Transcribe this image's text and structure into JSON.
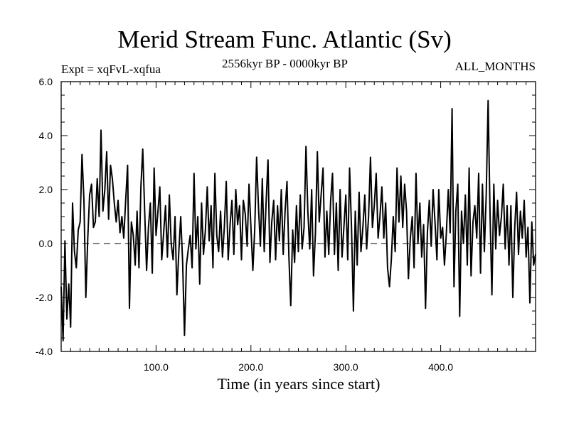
{
  "chart_data": {
    "type": "line",
    "title": "Merid Stream Func. Atlantic (Sv)",
    "subtitle_left": "Expt = xqFvL-xqfua",
    "subtitle_center": "2556kyr BP - 0000kyr BP",
    "subtitle_right": "ALL_MONTHS",
    "xlabel": "Time (in years since start)",
    "ylabel": "",
    "xlim": [
      0,
      500
    ],
    "ylim": [
      -4.0,
      6.0
    ],
    "x_ticks": [
      100,
      200,
      300,
      400
    ],
    "x_tick_labels": [
      "100.0",
      "200.0",
      "300.0",
      "400.0"
    ],
    "y_ticks": [
      -4,
      -2,
      0,
      2,
      4,
      6
    ],
    "y_tick_labels": [
      "-4.0",
      "-2.0",
      "0.0",
      "2.0",
      "4.0",
      "6.0"
    ],
    "reference_line": 0.0,
    "series": [
      {
        "name": "Merid Stream Func. Atlantic",
        "points": [
          [
            0,
            -1.6
          ],
          [
            2,
            -3.6
          ],
          [
            4,
            0.1
          ],
          [
            6,
            -2.8
          ],
          [
            8,
            -1.5
          ],
          [
            10,
            -3.1
          ],
          [
            12,
            1.5
          ],
          [
            14,
            -0.3
          ],
          [
            16,
            -0.9
          ],
          [
            18,
            0.5
          ],
          [
            20,
            0.8
          ],
          [
            22,
            3.3
          ],
          [
            24,
            1.6
          ],
          [
            26,
            -2.0
          ],
          [
            28,
            0.2
          ],
          [
            30,
            1.8
          ],
          [
            32,
            2.2
          ],
          [
            34,
            0.6
          ],
          [
            36,
            0.8
          ],
          [
            38,
            2.4
          ],
          [
            40,
            1.0
          ],
          [
            42,
            4.2
          ],
          [
            44,
            1.2
          ],
          [
            46,
            2.0
          ],
          [
            48,
            3.4
          ],
          [
            50,
            0.9
          ],
          [
            52,
            2.9
          ],
          [
            54,
            2.4
          ],
          [
            56,
            1.5
          ],
          [
            58,
            0.8
          ],
          [
            60,
            1.6
          ],
          [
            62,
            0.4
          ],
          [
            64,
            1.0
          ],
          [
            66,
            0.2
          ],
          [
            68,
            1.6
          ],
          [
            70,
            2.9
          ],
          [
            72,
            -2.4
          ],
          [
            74,
            0.8
          ],
          [
            76,
            0.3
          ],
          [
            78,
            -0.8
          ],
          [
            80,
            1.2
          ],
          [
            82,
            -0.9
          ],
          [
            84,
            2.1
          ],
          [
            86,
            3.5
          ],
          [
            88,
            1.2
          ],
          [
            90,
            -1.0
          ],
          [
            92,
            0.6
          ],
          [
            94,
            1.5
          ],
          [
            96,
            -1.1
          ],
          [
            98,
            2.8
          ],
          [
            100,
            0.3
          ],
          [
            102,
            1.2
          ],
          [
            104,
            2.1
          ],
          [
            106,
            -0.6
          ],
          [
            108,
            0.4
          ],
          [
            110,
            1.4
          ],
          [
            112,
            -0.5
          ],
          [
            114,
            1.8
          ],
          [
            116,
            0.0
          ],
          [
            118,
            -0.6
          ],
          [
            120,
            1.0
          ],
          [
            122,
            -1.9
          ],
          [
            124,
            -0.3
          ],
          [
            126,
            1.0
          ],
          [
            128,
            -0.7
          ],
          [
            130,
            -3.4
          ],
          [
            132,
            -0.8
          ],
          [
            134,
            -0.2
          ],
          [
            136,
            0.3
          ],
          [
            138,
            -0.9
          ],
          [
            140,
            2.6
          ],
          [
            142,
            -0.2
          ],
          [
            144,
            1.0
          ],
          [
            146,
            -1.5
          ],
          [
            148,
            1.5
          ],
          [
            150,
            -0.4
          ],
          [
            152,
            0.5
          ],
          [
            154,
            2.1
          ],
          [
            156,
            0.1
          ],
          [
            158,
            1.4
          ],
          [
            160,
            -0.9
          ],
          [
            162,
            2.6
          ],
          [
            164,
            0.3
          ],
          [
            166,
            -0.3
          ],
          [
            168,
            1.2
          ],
          [
            170,
            -0.5
          ],
          [
            172,
            0.6
          ],
          [
            174,
            2.3
          ],
          [
            176,
            -0.6
          ],
          [
            178,
            0.7
          ],
          [
            180,
            1.6
          ],
          [
            182,
            -0.4
          ],
          [
            184,
            2.0
          ],
          [
            186,
            0.7
          ],
          [
            188,
            1.4
          ],
          [
            190,
            -0.6
          ],
          [
            192,
            1.6
          ],
          [
            194,
            1.1
          ],
          [
            196,
            -0.1
          ],
          [
            198,
            2.2
          ],
          [
            200,
            0.6
          ],
          [
            202,
            -1.0
          ],
          [
            204,
            0.5
          ],
          [
            206,
            3.2
          ],
          [
            208,
            1.3
          ],
          [
            210,
            -0.1
          ],
          [
            212,
            2.4
          ],
          [
            214,
            -0.3
          ],
          [
            216,
            1.5
          ],
          [
            218,
            3.1
          ],
          [
            220,
            -0.7
          ],
          [
            222,
            0.8
          ],
          [
            224,
            1.6
          ],
          [
            226,
            -0.6
          ],
          [
            228,
            1.4
          ],
          [
            230,
            0.1
          ],
          [
            232,
            2.0
          ],
          [
            234,
            -0.4
          ],
          [
            236,
            1.2
          ],
          [
            238,
            2.3
          ],
          [
            240,
            -0.5
          ],
          [
            242,
            -2.3
          ],
          [
            244,
            0.5
          ],
          [
            246,
            -0.7
          ],
          [
            248,
            1.4
          ],
          [
            250,
            -0.3
          ],
          [
            252,
            1.8
          ],
          [
            254,
            -0.2
          ],
          [
            256,
            0.6
          ],
          [
            258,
            3.6
          ],
          [
            260,
            1.2
          ],
          [
            262,
            -0.2
          ],
          [
            264,
            2.0
          ],
          [
            266,
            -1.2
          ],
          [
            268,
            0.4
          ],
          [
            270,
            3.4
          ],
          [
            272,
            0.8
          ],
          [
            274,
            1.8
          ],
          [
            276,
            2.8
          ],
          [
            278,
            -0.5
          ],
          [
            280,
            1.2
          ],
          [
            282,
            -0.4
          ],
          [
            284,
            1.6
          ],
          [
            286,
            2.6
          ],
          [
            288,
            -0.4
          ],
          [
            290,
            1.5
          ],
          [
            292,
            -1.0
          ],
          [
            294,
            2.0
          ],
          [
            296,
            -0.5
          ],
          [
            298,
            0.6
          ],
          [
            300,
            1.8
          ],
          [
            302,
            -0.6
          ],
          [
            304,
            2.8
          ],
          [
            306,
            0.6
          ],
          [
            308,
            -2.5
          ],
          [
            310,
            1.2
          ],
          [
            312,
            -0.8
          ],
          [
            314,
            1.9
          ],
          [
            316,
            -0.3
          ],
          [
            318,
            0.6
          ],
          [
            320,
            1.8
          ],
          [
            322,
            -0.2
          ],
          [
            324,
            1.0
          ],
          [
            326,
            3.2
          ],
          [
            328,
            0.6
          ],
          [
            330,
            1.4
          ],
          [
            332,
            2.6
          ],
          [
            334,
            0.2
          ],
          [
            336,
            1.0
          ],
          [
            338,
            2.1
          ],
          [
            340,
            0.2
          ],
          [
            342,
            1.5
          ],
          [
            344,
            -0.9
          ],
          [
            346,
            -1.6
          ],
          [
            348,
            -0.6
          ],
          [
            350,
            1.0
          ],
          [
            352,
            -0.3
          ],
          [
            354,
            2.8
          ],
          [
            356,
            0.8
          ],
          [
            358,
            2.5
          ],
          [
            360,
            0.6
          ],
          [
            362,
            2.2
          ],
          [
            364,
            1.2
          ],
          [
            366,
            -1.3
          ],
          [
            368,
            0.2
          ],
          [
            370,
            1.0
          ],
          [
            372,
            -0.9
          ],
          [
            374,
            2.6
          ],
          [
            376,
            0.0
          ],
          [
            378,
            1.5
          ],
          [
            380,
            -0.5
          ],
          [
            382,
            0.7
          ],
          [
            384,
            -2.4
          ],
          [
            386,
            0.4
          ],
          [
            388,
            1.6
          ],
          [
            390,
            -0.1
          ],
          [
            392,
            2.0
          ],
          [
            394,
            0.8
          ],
          [
            396,
            -0.6
          ],
          [
            398,
            2.0
          ],
          [
            400,
            0.2
          ],
          [
            402,
            0.6
          ],
          [
            404,
            -0.8
          ],
          [
            406,
            0.4
          ],
          [
            408,
            2.0
          ],
          [
            410,
            0.4
          ],
          [
            412,
            5.0
          ],
          [
            414,
            -1.6
          ],
          [
            416,
            1.2
          ],
          [
            418,
            2.2
          ],
          [
            420,
            -2.7
          ],
          [
            422,
            1.2
          ],
          [
            424,
            0.0
          ],
          [
            426,
            1.8
          ],
          [
            428,
            -0.8
          ],
          [
            430,
            2.8
          ],
          [
            432,
            -1.2
          ],
          [
            434,
            0.8
          ],
          [
            436,
            1.4
          ],
          [
            438,
            0.2
          ],
          [
            440,
            2.6
          ],
          [
            442,
            -1.1
          ],
          [
            444,
            2.2
          ],
          [
            446,
            -0.3
          ],
          [
            448,
            1.8
          ],
          [
            450,
            5.3
          ],
          [
            452,
            1.1
          ],
          [
            454,
            -1.9
          ],
          [
            456,
            2.2
          ],
          [
            458,
            -0.2
          ],
          [
            460,
            1.6
          ],
          [
            462,
            0.3
          ],
          [
            464,
            1.0
          ],
          [
            466,
            2.2
          ],
          [
            468,
            -0.2
          ],
          [
            470,
            1.4
          ],
          [
            472,
            -0.8
          ],
          [
            474,
            1.4
          ],
          [
            476,
            -2.0
          ],
          [
            478,
            0.6
          ],
          [
            480,
            1.9
          ],
          [
            482,
            -0.4
          ],
          [
            484,
            1.2
          ],
          [
            486,
            0.2
          ],
          [
            488,
            1.6
          ],
          [
            490,
            -0.5
          ],
          [
            492,
            0.6
          ],
          [
            494,
            -2.2
          ],
          [
            496,
            0.8
          ],
          [
            498,
            -0.8
          ],
          [
            500,
            -0.4
          ]
        ]
      }
    ]
  }
}
